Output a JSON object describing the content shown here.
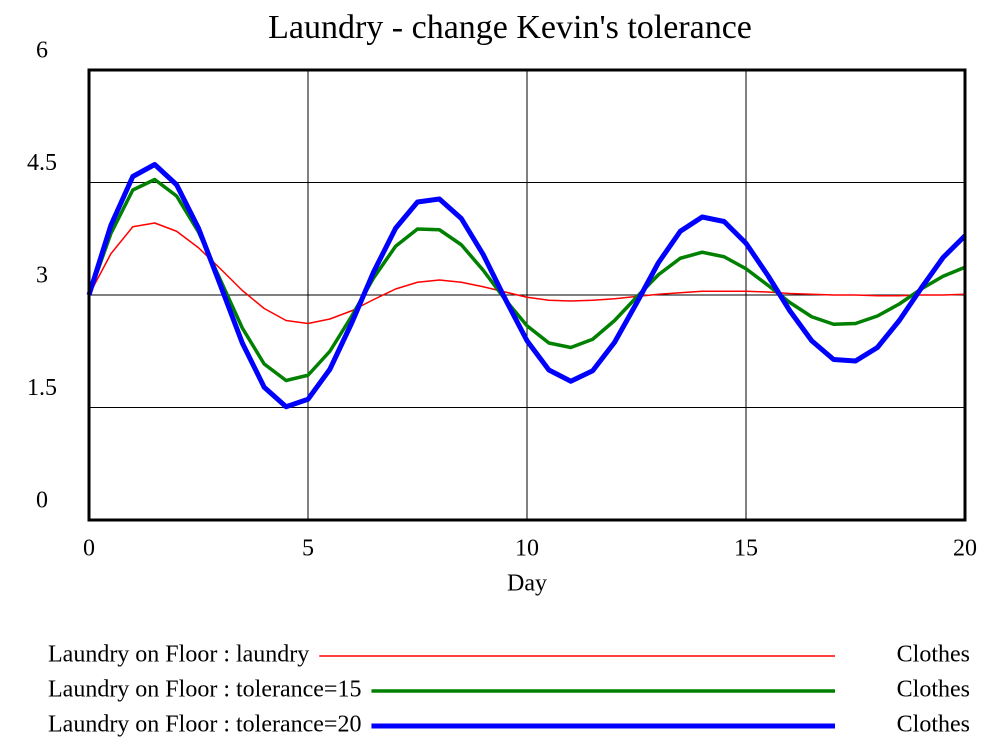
{
  "chart_data": {
    "type": "line",
    "title": "Laundry - change Kevin's tolerance",
    "x_label": "Day",
    "x": [
      0,
      0.5,
      1,
      1.5,
      2,
      2.5,
      3,
      3.5,
      4,
      4.5,
      5,
      5.5,
      6,
      6.5,
      7,
      7.5,
      8,
      8.5,
      9,
      9.5,
      10,
      10.5,
      11,
      11.5,
      12,
      12.5,
      13,
      13.5,
      14,
      14.5,
      15,
      15.5,
      16,
      16.5,
      17,
      17.5,
      18,
      18.5,
      19,
      19.5,
      20
    ],
    "series": [
      {
        "name": "Laundry on Floor : laundry",
        "unit": "Clothes",
        "color": "#ff0000",
        "width": 1.5,
        "values": [
          3,
          3.55,
          3.91,
          3.96,
          3.85,
          3.63,
          3.35,
          3.06,
          2.82,
          2.66,
          2.62,
          2.68,
          2.79,
          2.94,
          3.08,
          3.17,
          3.2,
          3.17,
          3.11,
          3.04,
          2.97,
          2.93,
          2.92,
          2.93,
          2.95,
          2.98,
          3.01,
          3.03,
          3.05,
          3.05,
          3.05,
          3.04,
          3.02,
          3.01,
          3,
          3,
          2.99,
          2.99,
          3,
          3,
          3.01
        ]
      },
      {
        "name": "Laundry on Floor : tolerance=15",
        "unit": "Clothes",
        "color": "#008000",
        "width": 3.5,
        "values": [
          3,
          3.82,
          4.4,
          4.54,
          4.32,
          3.84,
          3.2,
          2.56,
          2.08,
          1.86,
          1.93,
          2.25,
          2.72,
          3.23,
          3.65,
          3.88,
          3.87,
          3.67,
          3.33,
          2.94,
          2.59,
          2.36,
          2.3,
          2.41,
          2.66,
          2.97,
          3.27,
          3.49,
          3.57,
          3.51,
          3.35,
          3.13,
          2.9,
          2.71,
          2.61,
          2.62,
          2.72,
          2.88,
          3.08,
          3.25,
          3.37
        ]
      },
      {
        "name": "Laundry on Floor : tolerance=20",
        "unit": "Clothes",
        "color": "#0000ff",
        "width": 5,
        "values": [
          3,
          3.93,
          4.58,
          4.74,
          4.47,
          3.89,
          3.13,
          2.36,
          1.77,
          1.51,
          1.61,
          2.01,
          2.63,
          3.31,
          3.89,
          4.24,
          4.28,
          4.02,
          3.54,
          2.95,
          2.39,
          2,
          1.85,
          1.99,
          2.37,
          2.89,
          3.43,
          3.85,
          4.04,
          3.98,
          3.69,
          3.26,
          2.79,
          2.39,
          2.14,
          2.12,
          2.3,
          2.66,
          3.09,
          3.5,
          3.79
        ]
      }
    ],
    "xlim": [
      0,
      20
    ],
    "xticks": [
      0,
      5,
      10,
      15,
      20
    ],
    "ylim": [
      0,
      6
    ],
    "yticks": [
      0,
      1.5,
      3,
      4.5,
      6
    ],
    "grid": true
  }
}
